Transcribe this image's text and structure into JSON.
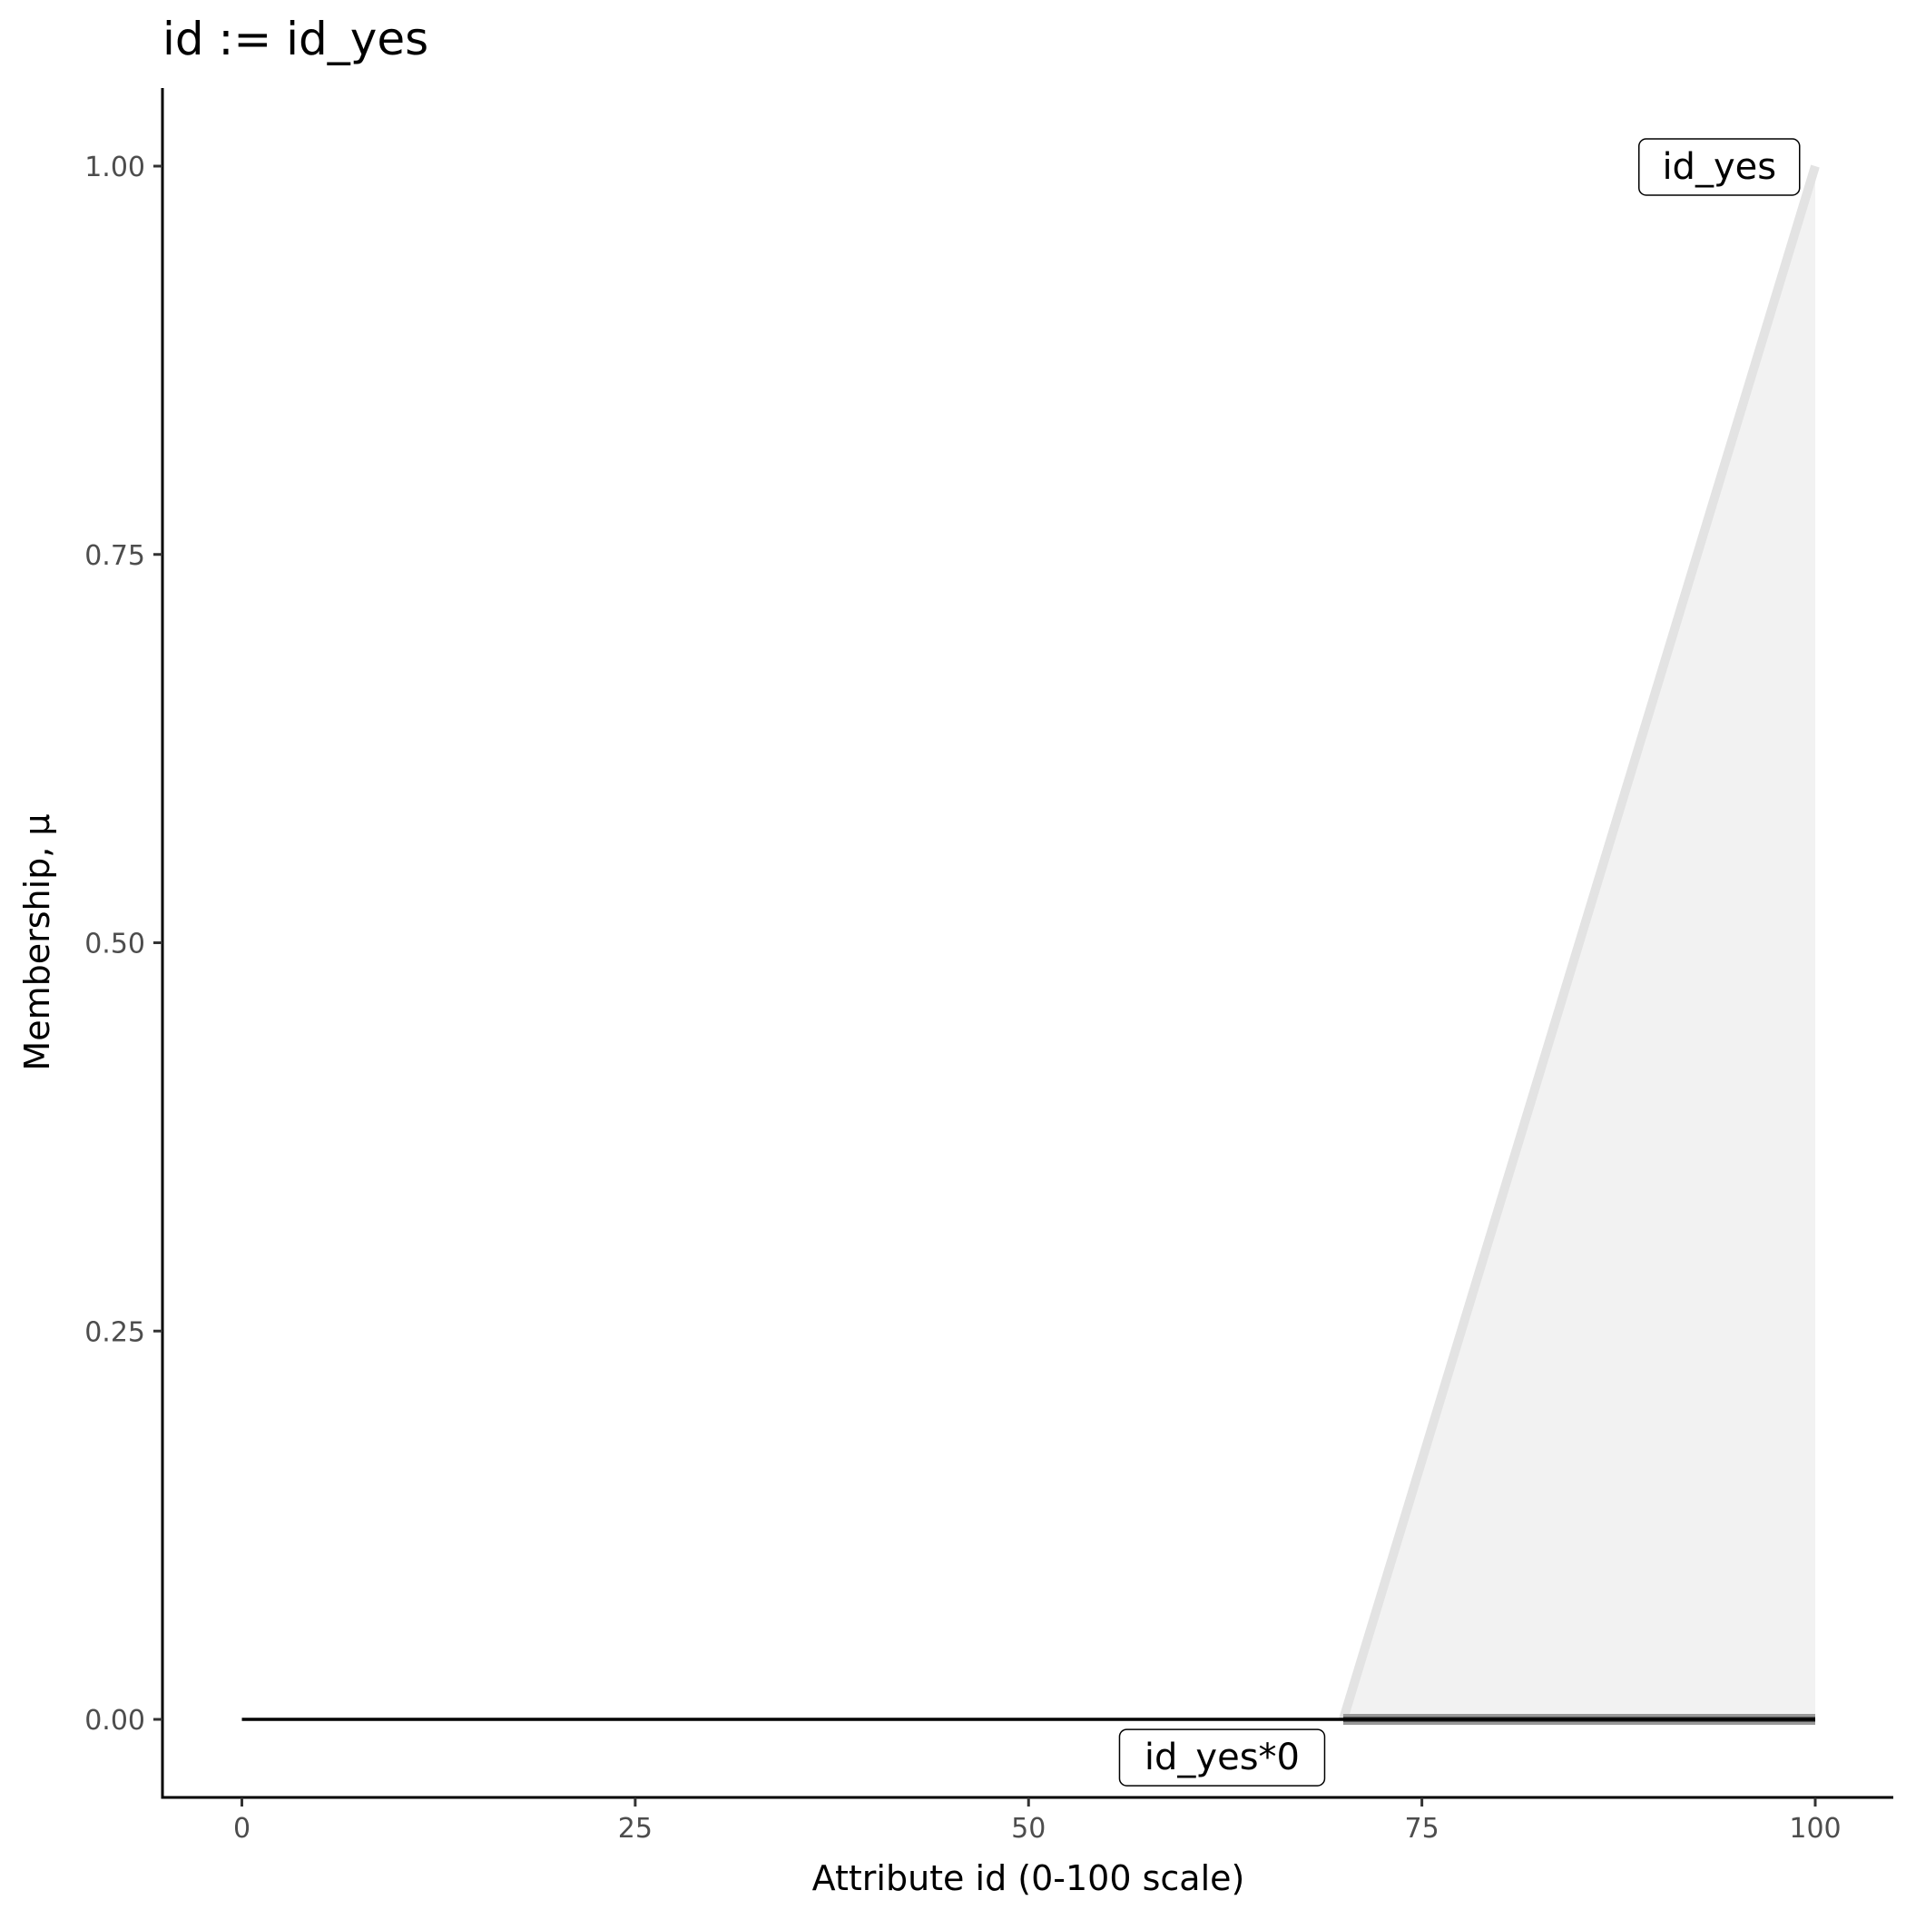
{
  "chart_data": {
    "type": "area",
    "title": "id := id_yes",
    "xlabel": "Attribute id (0-100 scale)",
    "ylabel": "Membership, μ",
    "xlim": [
      -5,
      105
    ],
    "ylim": [
      -0.05,
      1.05
    ],
    "x_ticks": [
      "0",
      "25",
      "50",
      "75",
      "100"
    ],
    "x_tick_values": [
      0,
      25,
      50,
      75,
      100
    ],
    "y_ticks": [
      "0.00",
      "0.25",
      "0.50",
      "0.75",
      "1.00"
    ],
    "y_tick_values": [
      0,
      0.25,
      0.5,
      0.75,
      1.0
    ],
    "grid": false,
    "series": [
      {
        "name": "id_yes",
        "x": [
          70,
          100
        ],
        "y": [
          0,
          1
        ],
        "color": "#e3e3e3",
        "fill": "#f2f2f2"
      },
      {
        "name": "id_yes*0",
        "x": [
          0,
          70,
          100
        ],
        "y": [
          0,
          0,
          0
        ],
        "color": "#000000"
      }
    ],
    "annotations": [
      {
        "text": "id_yes",
        "x": 93.9,
        "y": 1.0
      },
      {
        "text": "id_yes*0",
        "x": 62.3,
        "y": -0.024
      }
    ]
  }
}
